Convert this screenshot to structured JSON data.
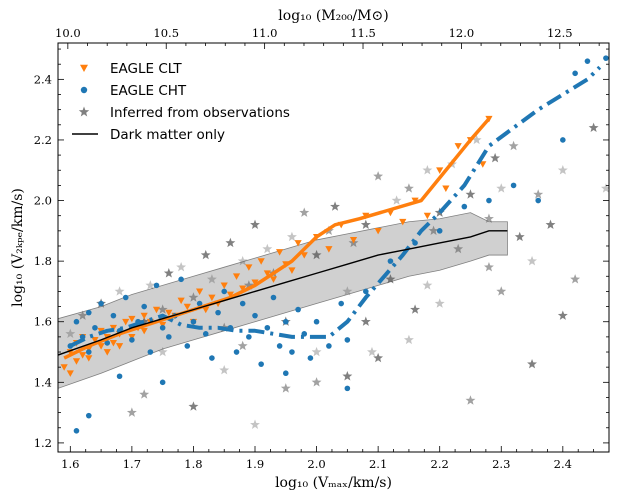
{
  "chart_data": {
    "type": "scatter",
    "xlabel": "log₁₀ (Vₘₐₓ/km/s)",
    "ylabel": "log₁₀ (V₂ₖₚₑ/km/s)",
    "top_xlabel": "log₁₀ (M₂₀₀/M⊙)",
    "xlim": [
      1.58,
      2.475
    ],
    "ylim": [
      1.17,
      2.52
    ],
    "top_xlim": [
      9.95,
      12.75
    ],
    "x_ticks": [
      "1.6",
      "1.7",
      "1.8",
      "1.9",
      "2.0",
      "2.1",
      "2.2",
      "2.3",
      "2.4"
    ],
    "y_ticks": [
      "1.2",
      "1.4",
      "1.6",
      "1.8",
      "2.0",
      "2.2",
      "2.4"
    ],
    "top_ticks": [
      "10.0",
      "10.5",
      "11.0",
      "11.5",
      "12.0",
      "12.5"
    ],
    "legend_position": "top-left",
    "colors": {
      "clt": "#ff7f0e",
      "cht": "#1f77b4",
      "obs": "#555555",
      "dmo": "#000000",
      "band": "#b0b0b0"
    },
    "legend": [
      {
        "label": "EAGLE CLT",
        "marker": "triangle"
      },
      {
        "label": "EAGLE CHT",
        "marker": "circle"
      },
      {
        "label": "Inferred from observations",
        "marker": "star"
      },
      {
        "label": "Dark matter only",
        "marker": "line"
      }
    ],
    "series": [
      {
        "name": "EAGLE CLT",
        "kind": "points",
        "x": [
          1.59,
          1.6,
          1.6,
          1.61,
          1.61,
          1.62,
          1.62,
          1.63,
          1.63,
          1.64,
          1.65,
          1.65,
          1.66,
          1.66,
          1.67,
          1.67,
          1.68,
          1.68,
          1.69,
          1.7,
          1.7,
          1.71,
          1.72,
          1.72,
          1.73,
          1.74,
          1.75,
          1.76,
          1.77,
          1.78,
          1.79,
          1.8,
          1.81,
          1.82,
          1.83,
          1.84,
          1.85,
          1.86,
          1.87,
          1.88,
          1.89,
          1.9,
          1.91,
          1.92,
          1.93,
          1.94,
          1.95,
          1.96,
          1.97,
          1.98,
          2.0,
          2.02,
          2.04,
          2.06,
          2.08,
          2.1,
          2.12,
          2.14,
          2.16,
          2.18,
          2.2,
          2.21,
          2.23,
          2.25,
          2.27,
          2.28
        ],
        "y": [
          1.45,
          1.43,
          1.5,
          1.47,
          1.53,
          1.49,
          1.55,
          1.51,
          1.48,
          1.54,
          1.52,
          1.57,
          1.5,
          1.55,
          1.53,
          1.58,
          1.56,
          1.52,
          1.6,
          1.55,
          1.61,
          1.58,
          1.57,
          1.62,
          1.6,
          1.64,
          1.59,
          1.63,
          1.62,
          1.67,
          1.65,
          1.6,
          1.7,
          1.64,
          1.68,
          1.66,
          1.72,
          1.69,
          1.75,
          1.71,
          1.78,
          1.73,
          1.8,
          1.76,
          1.74,
          1.83,
          1.79,
          1.77,
          1.86,
          1.82,
          1.88,
          1.84,
          1.92,
          1.87,
          1.95,
          1.9,
          1.96,
          1.93,
          2.0,
          1.95,
          2.1,
          2.04,
          2.18,
          2.2,
          2.12,
          2.27
        ]
      },
      {
        "name": "EAGLE CHT",
        "kind": "points",
        "x": [
          1.6,
          1.61,
          1.62,
          1.63,
          1.63,
          1.64,
          1.65,
          1.66,
          1.67,
          1.68,
          1.69,
          1.7,
          1.71,
          1.72,
          1.73,
          1.74,
          1.75,
          1.76,
          1.77,
          1.78,
          1.79,
          1.8,
          1.81,
          1.82,
          1.83,
          1.84,
          1.85,
          1.86,
          1.87,
          1.88,
          1.89,
          1.9,
          1.91,
          1.92,
          1.93,
          1.94,
          1.95,
          1.96,
          1.97,
          1.98,
          1.99,
          2.0,
          2.02,
          2.04,
          2.05,
          2.08,
          2.12,
          2.16,
          2.2,
          2.24,
          2.28,
          2.32,
          2.36,
          2.4,
          2.42,
          2.44,
          2.47,
          1.61,
          1.63,
          1.68,
          1.75,
          1.95,
          2.05
        ],
        "y": [
          1.52,
          1.6,
          1.55,
          1.63,
          1.5,
          1.58,
          1.66,
          1.53,
          1.62,
          1.57,
          1.68,
          1.54,
          1.6,
          1.65,
          1.5,
          1.72,
          1.58,
          1.55,
          1.62,
          1.74,
          1.52,
          1.6,
          1.66,
          1.56,
          1.48,
          1.63,
          1.7,
          1.58,
          1.5,
          1.66,
          1.55,
          1.62,
          1.46,
          1.58,
          1.68,
          1.52,
          1.6,
          1.5,
          1.64,
          1.56,
          1.48,
          1.6,
          1.52,
          1.66,
          1.54,
          1.7,
          1.8,
          1.86,
          1.9,
          1.98,
          2.0,
          2.05,
          2.0,
          2.2,
          2.42,
          2.46,
          2.47,
          1.24,
          1.29,
          1.42,
          1.4,
          1.43,
          1.38
        ]
      },
      {
        "name": "Inferred from observations",
        "kind": "points",
        "x": [
          1.6,
          1.62,
          1.65,
          1.68,
          1.7,
          1.72,
          1.73,
          1.75,
          1.76,
          1.78,
          1.8,
          1.82,
          1.83,
          1.85,
          1.86,
          1.88,
          1.89,
          1.9,
          1.92,
          1.93,
          1.95,
          1.96,
          1.98,
          2.0,
          2.0,
          2.02,
          2.03,
          2.05,
          2.06,
          2.08,
          2.09,
          2.1,
          2.12,
          2.13,
          2.15,
          2.16,
          2.18,
          2.19,
          2.2,
          2.22,
          2.23,
          2.25,
          2.26,
          2.28,
          2.29,
          2.3,
          2.32,
          2.33,
          2.35,
          2.36,
          2.38,
          2.4,
          2.42,
          2.45,
          2.47,
          1.72,
          1.8,
          1.9,
          2.0,
          2.1,
          2.2,
          2.3,
          2.4,
          1.85,
          1.95,
          2.05,
          2.15,
          2.25,
          2.35,
          1.75,
          1.88,
          2.08,
          2.18,
          2.28
        ],
        "y": [
          1.56,
          1.62,
          1.66,
          1.7,
          1.3,
          1.6,
          1.72,
          1.64,
          1.76,
          1.78,
          1.68,
          1.82,
          1.74,
          1.58,
          1.86,
          1.8,
          1.72,
          1.92,
          1.84,
          1.76,
          1.6,
          1.88,
          1.96,
          1.82,
          1.5,
          1.9,
          1.98,
          1.7,
          1.86,
          1.92,
          1.5,
          2.08,
          1.74,
          2.0,
          2.04,
          1.64,
          2.1,
          1.9,
          1.96,
          2.12,
          1.84,
          2.02,
          2.2,
          1.94,
          2.14,
          2.04,
          2.18,
          1.88,
          1.8,
          2.02,
          1.92,
          2.1,
          1.74,
          2.24,
          2.04,
          1.36,
          1.32,
          1.26,
          1.4,
          1.48,
          1.66,
          1.7,
          1.62,
          1.44,
          1.38,
          1.42,
          1.54,
          1.34,
          1.46,
          1.5,
          1.52,
          1.6,
          1.72,
          1.78
        ]
      },
      {
        "name": "EAGLE CLT",
        "kind": "median",
        "x": [
          1.59,
          1.63,
          1.68,
          1.74,
          1.8,
          1.86,
          1.9,
          1.93,
          1.96,
          1.98,
          2.0,
          2.03,
          2.07,
          2.12,
          2.17,
          2.21,
          2.25,
          2.28
        ],
        "y": [
          1.48,
          1.52,
          1.56,
          1.6,
          1.64,
          1.68,
          1.72,
          1.76,
          1.8,
          1.84,
          1.88,
          1.92,
          1.94,
          1.97,
          2.0,
          2.1,
          2.2,
          2.27
        ]
      },
      {
        "name": "EAGLE CHT",
        "kind": "median",
        "x": [
          1.6,
          1.63,
          1.66,
          1.69,
          1.72,
          1.75,
          1.78,
          1.81,
          1.84,
          1.87,
          1.9,
          1.93,
          1.96,
          1.99,
          2.02,
          2.05,
          2.08,
          2.11,
          2.14,
          2.17,
          2.2,
          2.24,
          2.28,
          2.32,
          2.36,
          2.4,
          2.44,
          2.46
        ],
        "y": [
          1.52,
          1.55,
          1.57,
          1.58,
          1.6,
          1.62,
          1.59,
          1.58,
          1.58,
          1.57,
          1.57,
          1.56,
          1.55,
          1.55,
          1.55,
          1.6,
          1.68,
          1.75,
          1.82,
          1.9,
          1.96,
          2.05,
          2.18,
          2.24,
          2.3,
          2.35,
          2.4,
          2.44
        ]
      },
      {
        "name": "Dark matter only",
        "kind": "line",
        "x": [
          1.58,
          1.65,
          1.7,
          1.75,
          1.8,
          1.85,
          1.9,
          1.95,
          2.0,
          2.05,
          2.1,
          2.15,
          2.2,
          2.25,
          2.28,
          2.31
        ],
        "y": [
          1.49,
          1.54,
          1.58,
          1.61,
          1.64,
          1.67,
          1.7,
          1.73,
          1.76,
          1.79,
          1.82,
          1.84,
          1.86,
          1.88,
          1.9,
          1.9
        ],
        "band_upper": [
          1.61,
          1.65,
          1.69,
          1.72,
          1.75,
          1.78,
          1.81,
          1.84,
          1.87,
          1.89,
          1.91,
          1.93,
          1.94,
          1.96,
          1.93,
          1.93
        ],
        "band_lower": [
          1.38,
          1.43,
          1.47,
          1.51,
          1.54,
          1.57,
          1.6,
          1.63,
          1.66,
          1.69,
          1.72,
          1.75,
          1.77,
          1.8,
          1.82,
          1.82
        ]
      }
    ]
  }
}
